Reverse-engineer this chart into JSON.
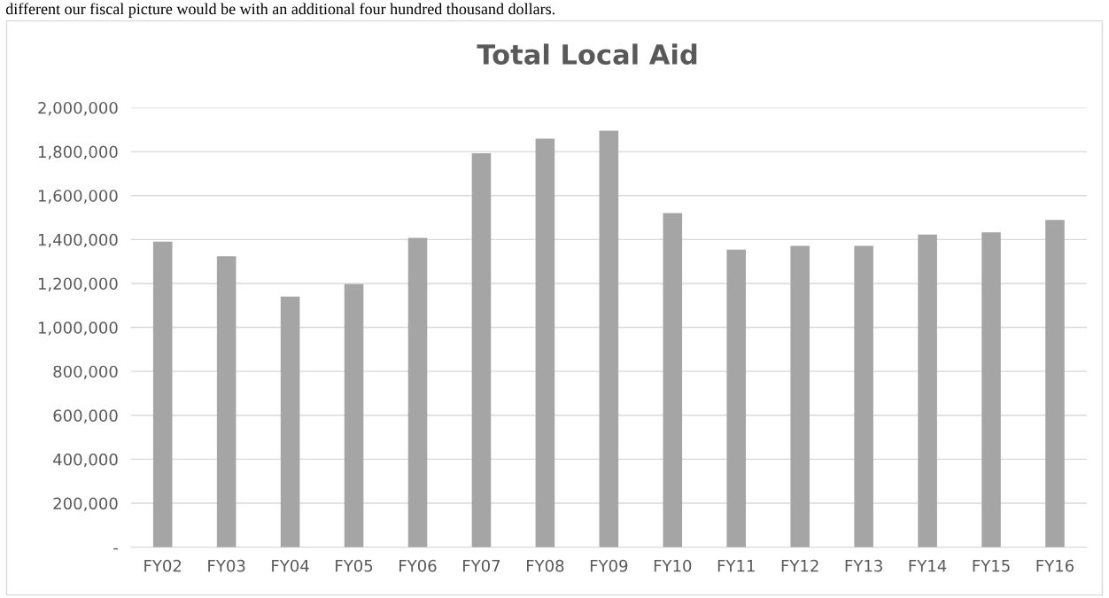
{
  "chart_data": {
    "type": "bar",
    "title": "Total Local Aid",
    "annotations": [
      "different our fiscal picture would be with an additional four hundred thousand dollars."
    ],
    "categories": [
      "FY02",
      "FY03",
      "FY04",
      "FY05",
      "FY06",
      "FY07",
      "FY08",
      "FY09",
      "FY10",
      "FY11",
      "FY12",
      "FY13",
      "FY14",
      "FY15",
      "FY16"
    ],
    "values": [
      1390000,
      1324000,
      1140000,
      1197000,
      1407000,
      1792000,
      1859000,
      1895000,
      1520000,
      1354000,
      1371000,
      1371000,
      1423000,
      1433000,
      1489000
    ],
    "color": "#a5a5a5",
    "ylim": [
      0,
      2000000
    ],
    "yticks": [
      {
        "value": 0,
        "label": "-"
      },
      {
        "value": 200000,
        "label": "200,000"
      },
      {
        "value": 400000,
        "label": "400,000"
      },
      {
        "value": 600000,
        "label": "600,000"
      },
      {
        "value": 800000,
        "label": "800,000"
      },
      {
        "value": 1000000,
        "label": "1,000,000"
      },
      {
        "value": 1200000,
        "label": "1,200,000"
      },
      {
        "value": 1400000,
        "label": "1,400,000"
      },
      {
        "value": 1600000,
        "label": "1,600,000"
      },
      {
        "value": 1800000,
        "label": "1,800,000"
      },
      {
        "value": 2000000,
        "label": "2,000,000"
      }
    ],
    "grid": "y"
  }
}
